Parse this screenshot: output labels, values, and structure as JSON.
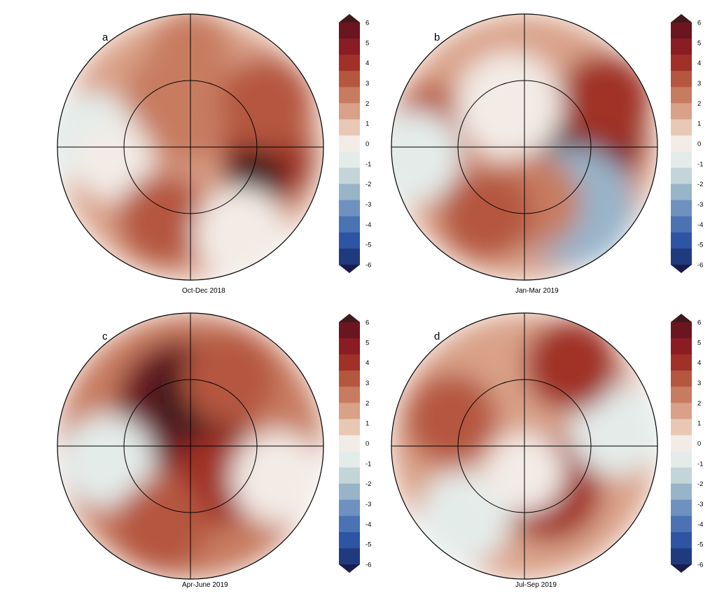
{
  "figure": {
    "panels": [
      {
        "letter": "a",
        "caption": "Oct-Dec 2018",
        "blobs": [
          {
            "lon": 0,
            "lat": 90,
            "r": 1.0,
            "v": 1.6
          },
          {
            "lon": -10,
            "lat": 70,
            "r": 0.45,
            "v": 2.4
          },
          {
            "lon": 100,
            "lat": 55,
            "r": 0.35,
            "v": 3.2
          },
          {
            "lon": 115,
            "lat": 58,
            "r": 0.22,
            "v": 5.5
          },
          {
            "lon": -85,
            "lat": 45,
            "r": 0.35,
            "v": -0.5
          },
          {
            "lon": -100,
            "lat": 55,
            "r": 0.3,
            "v": 0.2
          },
          {
            "lon": -160,
            "lat": 55,
            "r": 0.35,
            "v": 2.8
          },
          {
            "lon": 150,
            "lat": 45,
            "r": 0.35,
            "v": 0.0
          },
          {
            "lon": 0,
            "lat": 45,
            "r": 0.3,
            "v": 2.2
          },
          {
            "lon": 60,
            "lat": 50,
            "r": 0.35,
            "v": 2.6
          }
        ]
      },
      {
        "letter": "b",
        "caption": "Jan-Mar 2019",
        "blobs": [
          {
            "lon": 0,
            "lat": 90,
            "r": 1.0,
            "v": 1.2
          },
          {
            "lon": 80,
            "lat": 62,
            "r": 0.45,
            "v": 4.2
          },
          {
            "lon": 95,
            "lat": 65,
            "r": 0.28,
            "v": 6.2
          },
          {
            "lon": 60,
            "lat": 48,
            "r": 0.35,
            "v": 3.6
          },
          {
            "lon": -80,
            "lat": 48,
            "r": 0.35,
            "v": 3.0
          },
          {
            "lon": -95,
            "lat": 40,
            "r": 0.35,
            "v": -0.8
          },
          {
            "lon": 140,
            "lat": 55,
            "r": 0.45,
            "v": -2.2
          },
          {
            "lon": -20,
            "lat": 70,
            "r": 0.4,
            "v": 0.2
          },
          {
            "lon": 170,
            "lat": 65,
            "r": 0.35,
            "v": 2.0
          },
          {
            "lon": -150,
            "lat": 55,
            "r": 0.35,
            "v": 2.6
          }
        ]
      },
      {
        "letter": "c",
        "caption": "Apr-June 2019",
        "blobs": [
          {
            "lon": 0,
            "lat": 90,
            "r": 1.0,
            "v": 1.8
          },
          {
            "lon": -10,
            "lat": 72,
            "r": 0.5,
            "v": 4.6
          },
          {
            "lon": 0,
            "lat": 68,
            "r": 0.3,
            "v": 5.8
          },
          {
            "lon": 140,
            "lat": 70,
            "r": 0.35,
            "v": 3.6
          },
          {
            "lon": 110,
            "lat": 48,
            "r": 0.35,
            "v": 0.2
          },
          {
            "lon": -100,
            "lat": 52,
            "r": 0.35,
            "v": -0.6
          },
          {
            "lon": -160,
            "lat": 52,
            "r": 0.35,
            "v": 3.0
          },
          {
            "lon": 30,
            "lat": 55,
            "r": 0.35,
            "v": 3.0
          }
        ]
      },
      {
        "letter": "d",
        "caption": "Jul-Sep 2019",
        "blobs": [
          {
            "lon": 0,
            "lat": 90,
            "r": 1.0,
            "v": 1.4
          },
          {
            "lon": 150,
            "lat": 68,
            "r": 0.4,
            "v": 3.6
          },
          {
            "lon": -140,
            "lat": 48,
            "r": 0.35,
            "v": -1.0
          },
          {
            "lon": 80,
            "lat": 48,
            "r": 0.35,
            "v": -0.8
          },
          {
            "lon": 30,
            "lat": 48,
            "r": 0.35,
            "v": 3.2
          },
          {
            "lon": -70,
            "lat": 55,
            "r": 0.35,
            "v": 2.6
          },
          {
            "lon": 180,
            "lat": 78,
            "r": 0.3,
            "v": 0.2
          }
        ]
      }
    ],
    "colorbar": {
      "ticks": [
        "6",
        "5",
        "4",
        "3",
        "2",
        "1",
        "0",
        "-1",
        "-2",
        "-3",
        "-4",
        "-5",
        "-6"
      ],
      "vmin": -6,
      "vmax": 6,
      "colors": [
        "#191C4C",
        "#203B7D",
        "#2E55A3",
        "#4B72B3",
        "#6E91BF",
        "#98B4C9",
        "#C3D5D8",
        "#E4ECEA",
        "#F3ECE6",
        "#E8C8B5",
        "#D9A188",
        "#C77B60",
        "#B5573F",
        "#A03028",
        "#8A1C23",
        "#6A1520",
        "#3F1A1C"
      ]
    }
  }
}
